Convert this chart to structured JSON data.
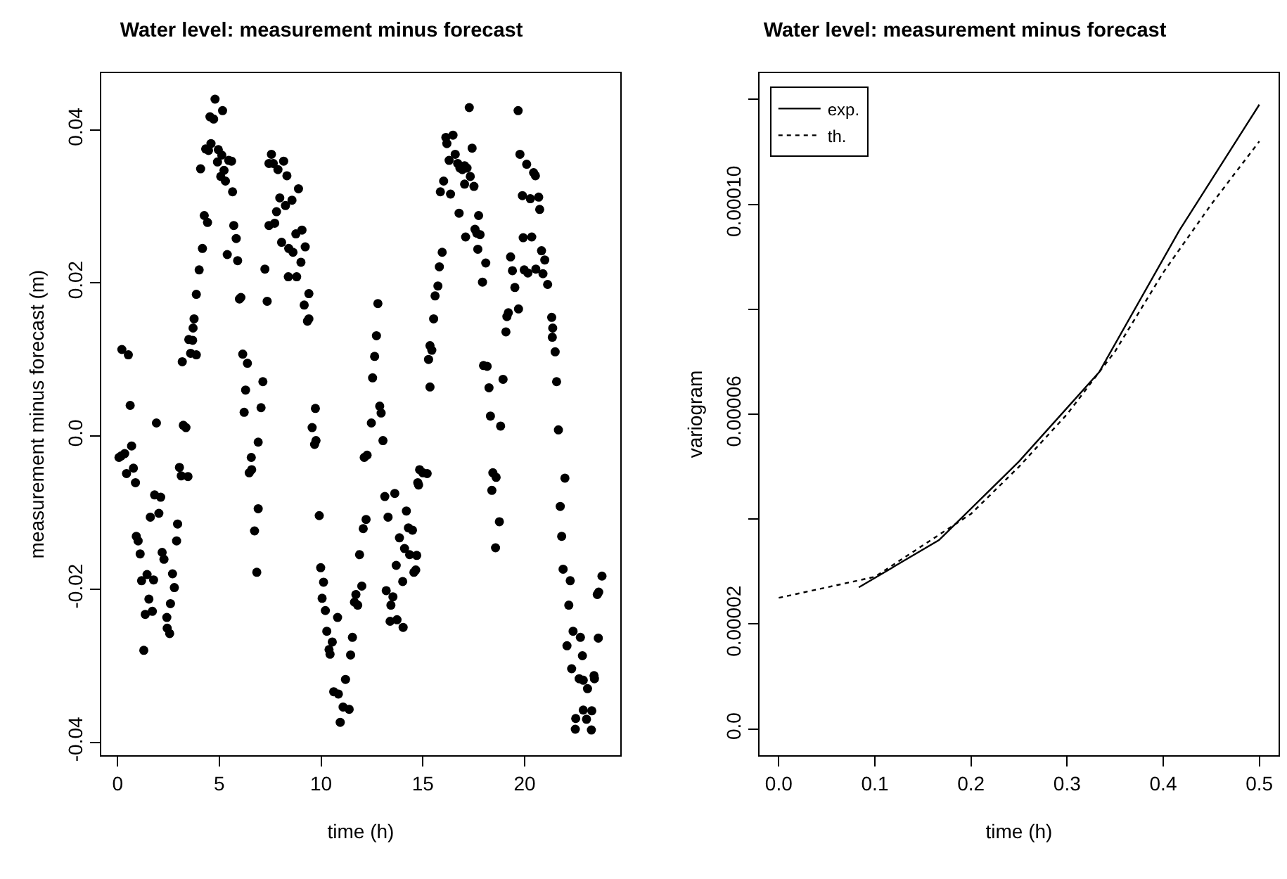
{
  "chart_data": [
    {
      "type": "scatter",
      "title": "Water level: measurement minus forecast",
      "xlabel": "time (h)",
      "ylabel": "measurement minus forecast (m)",
      "color": "#000000",
      "marker": "circle",
      "grid": false,
      "legend": false,
      "xlim": [
        -0.8,
        24.7
      ],
      "xticks": [
        0,
        5,
        10,
        15,
        20
      ],
      "ylim": [
        -0.0417,
        0.0474
      ],
      "yticks": [
        -0.04,
        -0.02,
        {
          "value": 0,
          "label": "0.0"
        },
        0.02,
        0.04
      ],
      "x": [
        0.18,
        0.35,
        0.07,
        0.21,
        0.53,
        0.62,
        0.69,
        0.44,
        0.78,
        0.88,
        0.92,
        1.01,
        1.11,
        1.18,
        1.45,
        1.29,
        1.36,
        1.54,
        1.71,
        1.77,
        1.61,
        1.82,
        2.12,
        2.03,
        1.91,
        2.19,
        2.28,
        2.42,
        2.44,
        2.56,
        2.6,
        2.7,
        2.79,
        2.9,
        2.95,
        3.04,
        3.13,
        3.46,
        3.18,
        3.23,
        3.36,
        3.59,
        3.69,
        3.87,
        3.5,
        3.71,
        3.76,
        3.87,
        4.01,
        4.17,
        4.26,
        4.42,
        4.08,
        4.33,
        4.47,
        4.54,
        4.72,
        4.79,
        5.16,
        4.59,
        4.91,
        4.95,
        5.07,
        5.12,
        5.3,
        5.23,
        5.46,
        5.6,
        5.65,
        5.71,
        5.83,
        5.9,
        5.39,
        5.99,
        6.06,
        6.15,
        6.38,
        6.29,
        6.22,
        6.57,
        6.47,
        6.59,
        6.91,
        7.05,
        7.14,
        6.91,
        6.73,
        6.84,
        7.24,
        7.35,
        7.56,
        7.44,
        7.65,
        7.88,
        8.16,
        8.32,
        7.97,
        7.81,
        8.25,
        8.57,
        8.89,
        7.72,
        7.44,
        8.06,
        8.41,
        8.62,
        8.76,
        9.06,
        9.22,
        9.01,
        8.39,
        8.8,
        9.4,
        9.17,
        9.4,
        9.33,
        9.72,
        9.56,
        9.75,
        9.68,
        9.91,
        9.98,
        10.12,
        10.05,
        10.21,
        10.28,
        10.81,
        10.55,
        10.39,
        10.44,
        11.54,
        11.45,
        11.2,
        10.62,
        10.85,
        11.08,
        11.38,
        10.94,
        11.89,
        12.0,
        11.71,
        11.64,
        11.8,
        12.07,
        12.21,
        12.12,
        12.26,
        12.47,
        12.53,
        12.63,
        12.72,
        12.79,
        12.88,
        12.95,
        13.04,
        13.13,
        13.62,
        13.29,
        14.19,
        14.29,
        14.49,
        13.85,
        14.1,
        14.35,
        14.7,
        13.69,
        14.56,
        14.65,
        14.01,
        13.2,
        13.53,
        13.43,
        13.39,
        13.73,
        14.03,
        14.84,
        14.75,
        15.0,
        15.21,
        14.79,
        15.35,
        15.28,
        15.44,
        15.35,
        15.53,
        15.6,
        15.74,
        15.81,
        15.95,
        15.86,
        16.02,
        16.36,
        16.13,
        16.18,
        16.29,
        16.48,
        16.59,
        16.71,
        16.82,
        16.94,
        17.05,
        17.17,
        17.28,
        17.42,
        17.33,
        17.51,
        17.05,
        16.78,
        17.1,
        17.56,
        17.65,
        17.81,
        17.74,
        17.7,
        18.09,
        17.93,
        17.98,
        18.16,
        18.25,
        18.94,
        18.32,
        18.82,
        18.44,
        18.6,
        18.39,
        18.76,
        18.57,
        19.08,
        19.13,
        19.2,
        19.7,
        19.52,
        19.4,
        19.31,
        19.68,
        19.77,
        19.89,
        20.1,
        20.44,
        20.53,
        20.28,
        20.69,
        20.74,
        19.93,
        20.35,
        19.98,
        20.16,
        20.55,
        20.83,
        20.99,
        20.9,
        21.13,
        21.33,
        21.38,
        21.36,
        21.5,
        21.57,
        21.66,
        21.98,
        21.75,
        21.82,
        21.89,
        22.24,
        22.17,
        22.38,
        22.08,
        22.74,
        22.31,
        22.68,
        22.88,
        23.09,
        22.84,
        23.41,
        23.43,
        23.62,
        23.57,
        23.64,
        23.8,
        22.88,
        23.04,
        23.3,
        22.51,
        22.49,
        23.28
      ],
      "values": [
        -0.0026,
        -0.0023,
        -0.0028,
        0.0113,
        0.0106,
        0.004,
        -0.0013,
        -0.0049,
        -0.0042,
        -0.0061,
        -0.0131,
        -0.0137,
        -0.0154,
        -0.0189,
        -0.0181,
        -0.028,
        -0.0233,
        -0.0213,
        -0.0229,
        -0.0188,
        -0.0106,
        -0.0077,
        -0.008,
        -0.0101,
        0.0017,
        -0.0152,
        -0.0161,
        -0.0237,
        -0.0251,
        -0.0258,
        -0.0219,
        -0.018,
        -0.0198,
        -0.0137,
        -0.0115,
        -0.0041,
        -0.0052,
        -0.0053,
        0.0097,
        0.0014,
        0.0011,
        0.0108,
        0.0125,
        0.0106,
        0.0126,
        0.0141,
        0.0153,
        0.0185,
        0.0217,
        0.0245,
        0.0288,
        0.0279,
        0.0349,
        0.0375,
        0.0373,
        0.0417,
        0.0414,
        0.044,
        0.0425,
        0.0382,
        0.0358,
        0.0374,
        0.0339,
        0.0367,
        0.0333,
        0.0347,
        0.036,
        0.0359,
        0.0319,
        0.0275,
        0.0258,
        0.0229,
        0.0237,
        0.0179,
        0.0181,
        0.0107,
        0.0095,
        0.006,
        0.0031,
        -0.0028,
        -0.0048,
        -0.0044,
        -0.0008,
        0.0037,
        0.0071,
        -0.0095,
        -0.0124,
        -0.0178,
        0.0218,
        0.0176,
        0.0368,
        0.0356,
        0.0356,
        0.0348,
        0.0359,
        0.034,
        0.0311,
        0.0293,
        0.0301,
        0.0308,
        0.0323,
        0.0278,
        0.0275,
        0.0253,
        0.0245,
        0.024,
        0.0264,
        0.0269,
        0.0247,
        0.0227,
        0.0208,
        0.0208,
        0.0186,
        0.0171,
        0.0153,
        0.015,
        0.0036,
        0.0011,
        -0.0006,
        -0.0011,
        -0.0104,
        -0.0172,
        -0.0191,
        -0.0212,
        -0.0228,
        -0.0255,
        -0.0237,
        -0.0269,
        -0.0279,
        -0.0285,
        -0.0263,
        -0.0286,
        -0.0318,
        -0.0334,
        -0.0337,
        -0.0354,
        -0.0357,
        -0.0374,
        -0.0155,
        -0.0196,
        -0.0207,
        -0.0217,
        -0.0221,
        -0.0121,
        -0.0109,
        -0.0028,
        -0.0025,
        0.0017,
        0.0076,
        0.0104,
        0.0131,
        0.0173,
        0.0039,
        0.003,
        -0.0006,
        -0.0079,
        -0.0075,
        -0.0106,
        -0.0098,
        -0.012,
        -0.0123,
        -0.0133,
        -0.0147,
        -0.0155,
        -0.0156,
        -0.0169,
        -0.0178,
        -0.0175,
        -0.019,
        -0.0202,
        -0.021,
        -0.0221,
        -0.0242,
        -0.024,
        -0.025,
        -0.0044,
        -0.0061,
        -0.0048,
        -0.0049,
        -0.0064,
        0.0064,
        0.01,
        0.0112,
        0.0118,
        0.0153,
        0.0183,
        0.0196,
        0.0221,
        0.024,
        0.0319,
        0.0333,
        0.0316,
        0.039,
        0.0382,
        0.036,
        0.0393,
        0.0368,
        0.0356,
        0.035,
        0.0348,
        0.0353,
        0.035,
        0.0429,
        0.0376,
        0.0339,
        0.0326,
        0.0329,
        0.0291,
        0.026,
        0.027,
        0.0265,
        0.0263,
        0.0288,
        0.0244,
        0.0226,
        0.0201,
        0.0092,
        0.0091,
        0.0063,
        0.0074,
        0.0026,
        0.0013,
        -0.0048,
        -0.0054,
        -0.0071,
        -0.0112,
        -0.0146,
        0.0136,
        0.0156,
        0.0161,
        0.0166,
        0.0194,
        0.0216,
        0.0234,
        0.0425,
        0.0368,
        0.0314,
        0.0355,
        0.0344,
        0.034,
        0.031,
        0.0312,
        0.0296,
        0.0259,
        0.026,
        0.0217,
        0.0213,
        0.0218,
        0.0242,
        0.023,
        0.0212,
        0.0198,
        0.0155,
        0.0141,
        0.0129,
        0.011,
        0.0071,
        0.0008,
        -0.0055,
        -0.0092,
        -0.0131,
        -0.0174,
        -0.0189,
        -0.0221,
        -0.0255,
        -0.0274,
        -0.0263,
        -0.0304,
        -0.0317,
        -0.0319,
        -0.033,
        -0.0287,
        -0.0313,
        -0.0317,
        -0.0264,
        -0.0207,
        -0.0204,
        -0.0183,
        -0.0358,
        -0.037,
        -0.0359,
        -0.0369,
        -0.0383,
        -0.0384
      ]
    },
    {
      "type": "line",
      "title": "Water level: measurement minus forecast",
      "xlabel": "time (h)",
      "ylabel": "variogram",
      "grid": false,
      "legend": "top left",
      "marker": "none",
      "xlim": [
        -0.02,
        0.52
      ],
      "xticks": [
        {
          "value": 0,
          "label": "0.0"
        },
        0.1,
        0.2,
        0.3,
        0.4,
        0.5
      ],
      "ylim": [
        -5e-06,
        0.000125
      ],
      "yticks": [
        {
          "value": 0,
          "label": "0.0"
        },
        {
          "value": 2e-05,
          "label": "0.00002"
        },
        {
          "value": 4e-05,
          "label": null
        },
        {
          "value": 6e-05,
          "label": "0.00006"
        },
        {
          "value": 8e-05,
          "label": null
        },
        {
          "value": 0.0001,
          "label": "0.00010"
        },
        {
          "value": 0.00012,
          "label": null
        }
      ],
      "series": [
        {
          "name": "exp.",
          "color": "#000000",
          "line_style": "solid",
          "x": [
            0.0833,
            0.1667,
            0.25,
            0.3333,
            0.4167,
            0.5
          ],
          "values": [
            2.7e-05,
            3.6e-05,
            5.1e-05,
            6.8e-05,
            9.5e-05,
            0.000119
          ]
        },
        {
          "name": "th.",
          "color": "#000000",
          "line_style": "dotted",
          "x": [
            0,
            0.05,
            0.1,
            0.15,
            0.2,
            0.25,
            0.3,
            0.35,
            0.4,
            0.45,
            0.5
          ],
          "values": [
            2.5e-05,
            2.7e-05,
            2.9e-05,
            3.5e-05,
            4.1e-05,
            5e-05,
            6e-05,
            7.2e-05,
            8.7e-05,
            0.0001,
            0.000112
          ]
        }
      ]
    }
  ]
}
